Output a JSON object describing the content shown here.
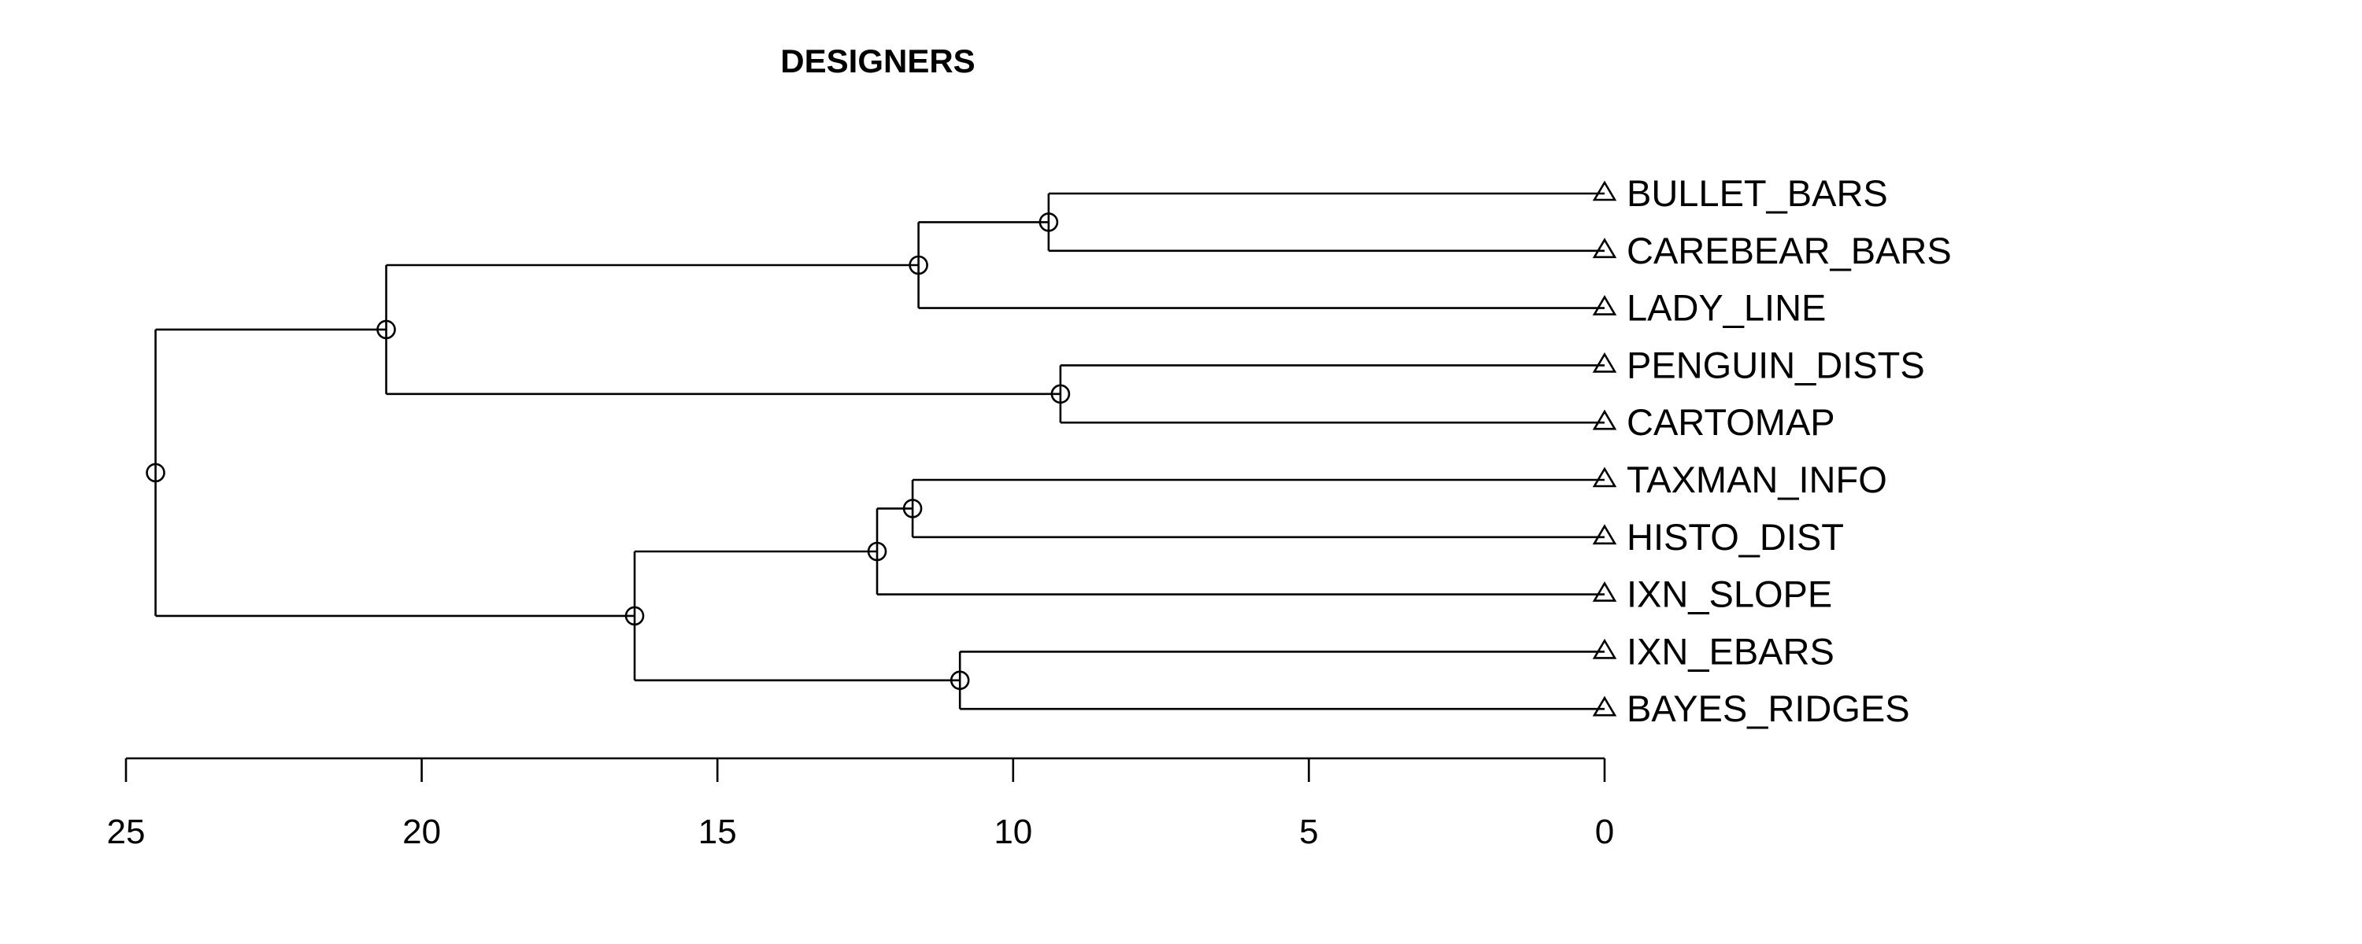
{
  "chart_data": {
    "type": "dendrogram",
    "title": "DESIGNERS",
    "xlabel": "",
    "ylabel": "",
    "xlim": [
      25,
      0
    ],
    "x_ticks": [
      25,
      20,
      15,
      10,
      5,
      0
    ],
    "leaf_marker": "triangle",
    "node_marker": "circle",
    "leaves": [
      "BULLET_BARS",
      "CAREBEAR_BARS",
      "LADY_LINE",
      "PENGUIN_DISTS",
      "CARTOMAP",
      "TAXMAN_INFO",
      "HISTO_DIST",
      "IXN_SLOPE",
      "IXN_EBARS",
      "BAYES_RIDGES"
    ],
    "merges": [
      {
        "id": "n1",
        "children": [
          "BULLET_BARS",
          "CAREBEAR_BARS"
        ],
        "height": 9.4
      },
      {
        "id": "n2",
        "children": [
          "n1",
          "LADY_LINE"
        ],
        "height": 11.6
      },
      {
        "id": "n3",
        "children": [
          "PENGUIN_DISTS",
          "CARTOMAP"
        ],
        "height": 9.2
      },
      {
        "id": "n4",
        "children": [
          "n2",
          "n3"
        ],
        "height": 20.6
      },
      {
        "id": "n5",
        "children": [
          "TAXMAN_INFO",
          "HISTO_DIST"
        ],
        "height": 11.7
      },
      {
        "id": "n6",
        "children": [
          "n5",
          "IXN_SLOPE"
        ],
        "height": 12.3
      },
      {
        "id": "n7",
        "children": [
          "IXN_EBARS",
          "BAYES_RIDGES"
        ],
        "height": 10.9
      },
      {
        "id": "n8",
        "children": [
          "n6",
          "n7"
        ],
        "height": 16.4
      },
      {
        "id": "n9",
        "children": [
          "n4",
          "n8"
        ],
        "height": 24.5
      }
    ]
  }
}
